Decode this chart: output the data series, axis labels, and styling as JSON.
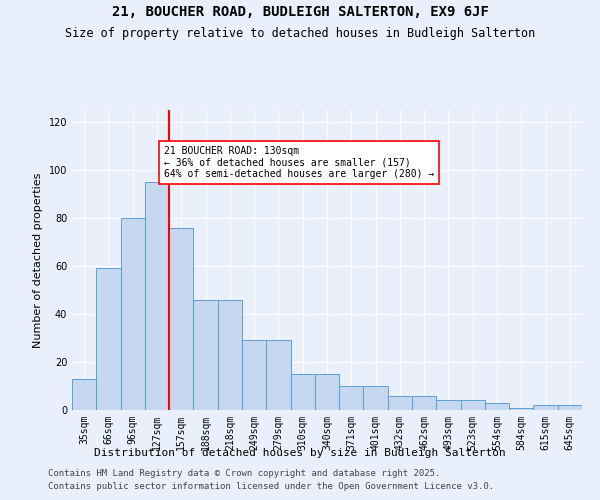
{
  "title1": "21, BOUCHER ROAD, BUDLEIGH SALTERTON, EX9 6JF",
  "title2": "Size of property relative to detached houses in Budleigh Salterton",
  "xlabel": "Distribution of detached houses by size in Budleigh Salterton",
  "ylabel": "Number of detached properties",
  "categories": [
    "35sqm",
    "66sqm",
    "96sqm",
    "127sqm",
    "157sqm",
    "188sqm",
    "218sqm",
    "249sqm",
    "279sqm",
    "310sqm",
    "340sqm",
    "371sqm",
    "401sqm",
    "432sqm",
    "462sqm",
    "493sqm",
    "523sqm",
    "554sqm",
    "584sqm",
    "615sqm",
    "645sqm"
  ],
  "bar_values": [
    13,
    59,
    80,
    95,
    76,
    46,
    46,
    29,
    29,
    15,
    15,
    10,
    10,
    6,
    6,
    4,
    4,
    3,
    1,
    2,
    2
  ],
  "bar_color": "#c5d8f0",
  "bar_edge_color": "#5a9fd4",
  "vline_x": 3.5,
  "vline_color": "red",
  "annotation_text": "21 BOUCHER ROAD: 130sqm\n← 36% of detached houses are smaller (157)\n64% of semi-detached houses are larger (280) →",
  "annotation_box_color": "white",
  "annotation_box_edge_color": "red",
  "ylim": [
    0,
    125
  ],
  "yticks": [
    0,
    20,
    40,
    60,
    80,
    100,
    120
  ],
  "background_color": "#eaf0fb",
  "grid_color": "white",
  "footer1": "Contains HM Land Registry data © Crown copyright and database right 2025.",
  "footer2": "Contains public sector information licensed under the Open Government Licence v3.0.",
  "title_fontsize": 10,
  "subtitle_fontsize": 8.5,
  "label_fontsize": 8,
  "tick_fontsize": 7,
  "footer_fontsize": 6.5
}
